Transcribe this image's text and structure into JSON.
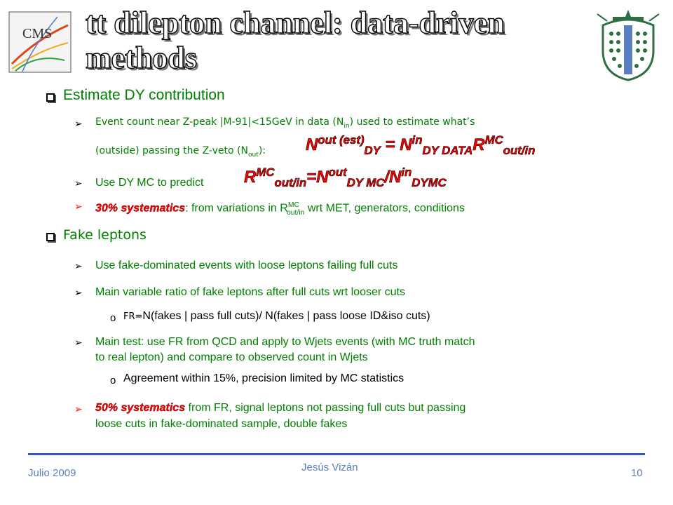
{
  "title": {
    "line1": "tt dilepton channel: data-driven",
    "line2": "methods"
  },
  "logos": {
    "left": "CMS",
    "right": "university-seal"
  },
  "section1": {
    "heading": "Estimate DY contribution",
    "b1_line1_pre": "Event count near Z-peak |M-91|<15GeV in data (N",
    "b1_line1_sub": "in",
    "b1_line1_post": ") used to estimate what’s",
    "b1_line2_pre": "(outside) passing the Z-veto (N",
    "b1_line2_sub": "out",
    "b1_line2_post": "):",
    "b2_text": "Use DY MC to predict",
    "b3_sys": "30% systematics",
    "b3_text_pre": ": from variations in R",
    "b3_sup": "MC",
    "b3_sub": "out/in",
    "b3_text_post": " wrt MET, generators, conditions"
  },
  "section2": {
    "heading": "Fake leptons",
    "b1": "Use fake-dominated events with loose leptons failing full cuts",
    "b2": "Main variable ratio of fake leptons after full cuts wrt looser cuts",
    "o1_pre": "FR=",
    "o1_text": "N(fakes | pass full cuts)/ N(fakes | pass loose ID&iso cuts)",
    "b3_line1": "Main test: use FR from QCD and apply to Wjets events (with MC truth match",
    "b3_line2": "to real lepton) and compare to observed count in Wjets",
    "o2": "Agreement within 15%, precision limited by MC statistics",
    "b4_sys": "50% systematics",
    "b4_line1": " from FR, signal leptons not passing full cuts but passing",
    "b4_line2": "loose cuts in fake-dominated sample,  double fakes"
  },
  "footer": {
    "date": "Julio 2009",
    "author": "Jesús Vizán",
    "page": "10"
  }
}
